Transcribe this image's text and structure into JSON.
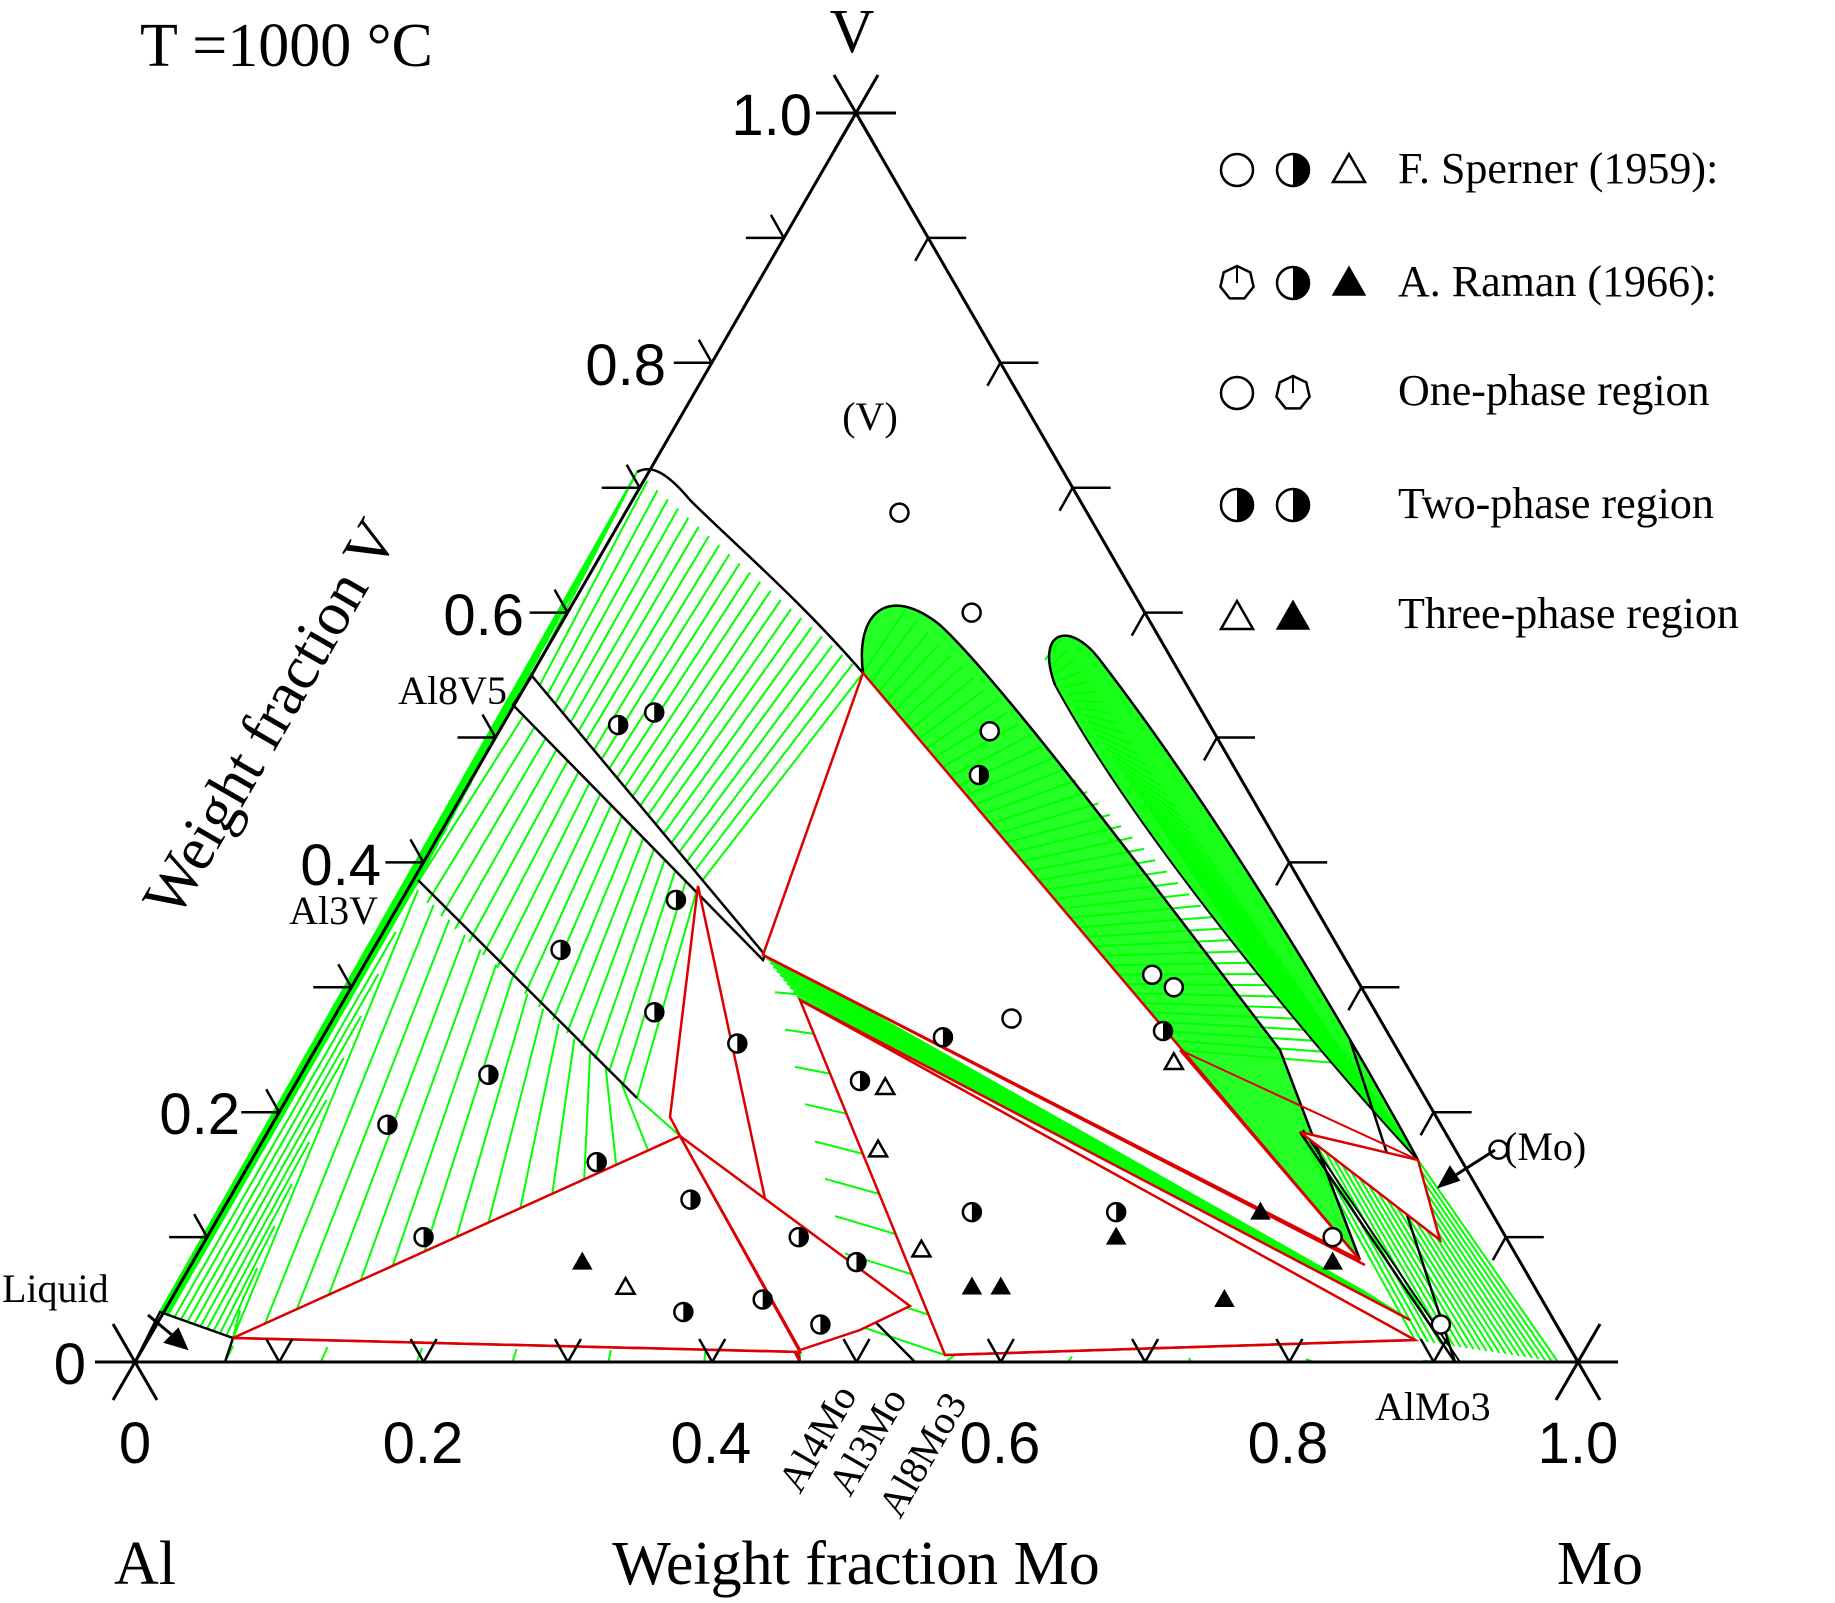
{
  "chart_data": {
    "type": "ternary-phase-diagram",
    "temperature_label": "T =1000 °C",
    "components": {
      "left": "Al",
      "right": "Mo",
      "top": "V"
    },
    "axes": {
      "bottom": {
        "label": "Weight fraction Mo",
        "ticks": [
          "0",
          "0.2",
          "0.4",
          "0.6",
          "0.8",
          "1.0"
        ]
      },
      "left": {
        "label": "Weight fraction V",
        "ticks": [
          "0",
          "0.2",
          "0.4",
          "0.6",
          "0.8",
          "1.0"
        ]
      },
      "minor_ticks_every": 0.1
    },
    "phase_labels": {
      "v_region": "(V)",
      "mo_region": "(Mo)",
      "liquid": "Liquid",
      "al8v5": "Al8V5",
      "al3v": "Al3V",
      "al4mo": "Al4Mo",
      "al3mo": "Al3Mo",
      "al8mo3": "Al8Mo3",
      "almo3": "AlMo3"
    },
    "legend": [
      {
        "symbols": [
          "open-circle",
          "half-filled-circle",
          "open-triangle"
        ],
        "text": "F. Sperner (1959):"
      },
      {
        "symbols": [
          "open-heptagon",
          "half-filled-circle-2",
          "filled-triangle"
        ],
        "text": "A. Raman (1966):"
      },
      {
        "symbols": [
          "open-circle",
          "open-heptagon"
        ],
        "text": "One-phase region"
      },
      {
        "symbols": [
          "half-filled-circle",
          "half-filled-circle-2"
        ],
        "text": "Two-phase region"
      },
      {
        "symbols": [
          "open-triangle",
          "filled-triangle"
        ],
        "text": "Three-phase region"
      }
    ],
    "colors": {
      "tie_lines": "#00ff00",
      "three_phase_boundaries": "#dd0000",
      "frame": "#000000"
    },
    "points": {
      "one_phase": [
        {
          "mo": 0.19,
          "v": 0.68
        },
        {
          "mo": 0.28,
          "v": 0.6
        },
        {
          "mo": 0.34,
          "v": 0.505
        },
        {
          "mo": 0.57,
          "v": 0.3
        },
        {
          "mo": 0.55,
          "v": 0.31
        },
        {
          "mo": 0.47,
          "v": 0.275
        },
        {
          "mo": 0.86,
          "v": 0.17
        },
        {
          "mo": 0.78,
          "v": 0.1
        },
        {
          "mo": 0.89,
          "v": 0.03
        }
      ],
      "two_phase": [
        {
          "mo": 0.08,
          "v": 0.19
        },
        {
          "mo": 0.13,
          "v": 0.23
        },
        {
          "mo": 0.13,
          "v": 0.33
        },
        {
          "mo": 0.15,
          "v": 0.1
        },
        {
          "mo": 0.22,
          "v": 0.28
        },
        {
          "mo": 0.08,
          "v": 0.51
        },
        {
          "mo": 0.1,
          "v": 0.52
        },
        {
          "mo": 0.19,
          "v": 0.37
        },
        {
          "mo": 0.35,
          "v": 0.47
        },
        {
          "mo": 0.24,
          "v": 0.16
        },
        {
          "mo": 0.29,
          "v": 0.255
        },
        {
          "mo": 0.39,
          "v": 0.225
        },
        {
          "mo": 0.32,
          "v": 0.13
        },
        {
          "mo": 0.43,
          "v": 0.26
        },
        {
          "mo": 0.58,
          "v": 0.265
        },
        {
          "mo": 0.52,
          "v": 0.12
        },
        {
          "mo": 0.62,
          "v": 0.12
        },
        {
          "mo": 0.41,
          "v": 0.05
        },
        {
          "mo": 0.36,
          "v": 0.04
        },
        {
          "mo": 0.41,
          "v": 0.1
        },
        {
          "mo": 0.46,
          "v": 0.03
        },
        {
          "mo": 0.46,
          "v": 0.08
        }
      ],
      "three_phase_open": [
        {
          "mo": 0.31,
          "v": 0.06
        },
        {
          "mo": 0.43,
          "v": 0.17
        },
        {
          "mo": 0.41,
          "v": 0.22
        },
        {
          "mo": 0.5,
          "v": 0.09
        },
        {
          "mo": 0.6,
          "v": 0.24
        }
      ],
      "three_phase_filled": [
        {
          "mo": 0.27,
          "v": 0.08
        },
        {
          "mo": 0.55,
          "v": 0.06
        },
        {
          "mo": 0.57,
          "v": 0.06
        },
        {
          "mo": 0.63,
          "v": 0.1
        },
        {
          "mo": 0.73,
          "v": 0.05
        },
        {
          "mo": 0.79,
          "v": 0.08
        },
        {
          "mo": 0.72,
          "v": 0.12
        }
      ]
    }
  }
}
